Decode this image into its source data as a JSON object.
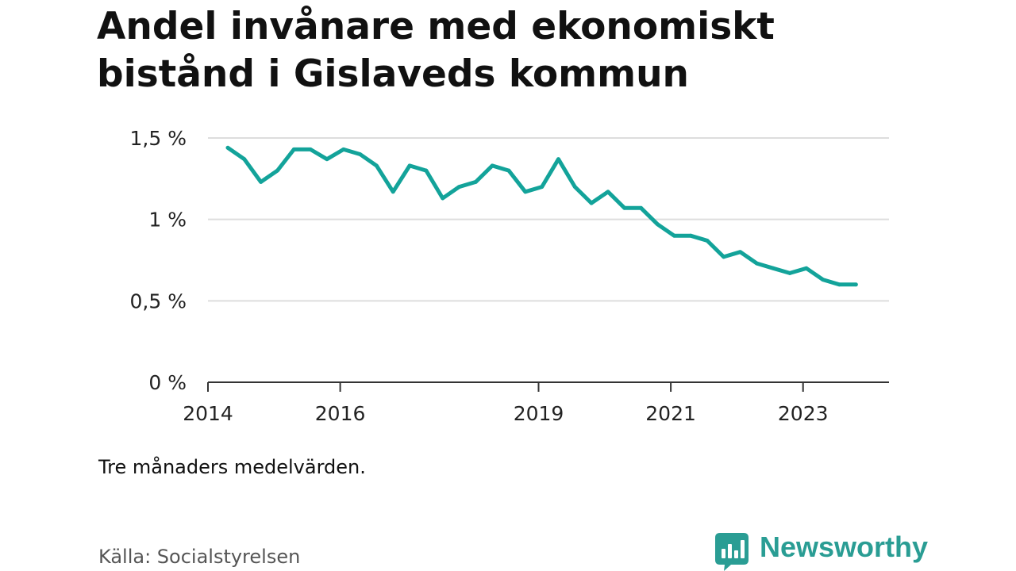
{
  "title": "Andel invånare med ekonomiskt bistånd i Gislaveds kommun",
  "note": "Tre månaders medelvärden.",
  "source": "Källa: Socialstyrelsen",
  "brand": "Newsworthy",
  "colors": {
    "line": "#13a39a",
    "grid": "#dddddd",
    "axis": "#333333",
    "brand": "#2a9d94"
  },
  "chart_data": {
    "type": "line",
    "title": "Andel invånare med ekonomiskt bistånd i Gislaveds kommun",
    "xlabel": "",
    "ylabel": "",
    "grid": true,
    "legend": "none",
    "ylim": [
      0,
      1.5
    ],
    "xlim": [
      2014,
      2024.3
    ],
    "yticks": [
      0,
      0.5,
      1,
      1.5
    ],
    "ytick_labels": [
      "0 %",
      "0,5 %",
      "1 %",
      "1,5 %"
    ],
    "xticks": [
      2014,
      2016,
      2019,
      2021,
      2023
    ],
    "xtick_labels": [
      "2014",
      "2016",
      "2019",
      "2021",
      "2023"
    ],
    "series": [
      {
        "name": "Andel invånare med ekonomiskt bistånd",
        "x": [
          2014.3,
          2014.55,
          2014.8,
          2015.05,
          2015.3,
          2015.55,
          2015.8,
          2016.05,
          2016.3,
          2016.55,
          2016.8,
          2017.05,
          2017.3,
          2017.55,
          2017.8,
          2018.05,
          2018.3,
          2018.55,
          2018.8,
          2019.05,
          2019.3,
          2019.55,
          2019.8,
          2020.05,
          2020.3,
          2020.55,
          2020.8,
          2021.05,
          2021.3,
          2021.55,
          2021.8,
          2022.05,
          2022.3,
          2022.55,
          2022.8,
          2023.05,
          2023.3,
          2023.55,
          2023.8
        ],
        "values": [
          1.44,
          1.37,
          1.23,
          1.3,
          1.43,
          1.43,
          1.37,
          1.43,
          1.4,
          1.33,
          1.17,
          1.33,
          1.3,
          1.13,
          1.2,
          1.23,
          1.33,
          1.3,
          1.17,
          1.2,
          1.37,
          1.2,
          1.1,
          1.17,
          1.07,
          1.07,
          0.97,
          0.9,
          0.9,
          0.87,
          0.77,
          0.8,
          0.73,
          0.7,
          0.67,
          0.7,
          0.63,
          0.6,
          0.6
        ]
      }
    ]
  }
}
